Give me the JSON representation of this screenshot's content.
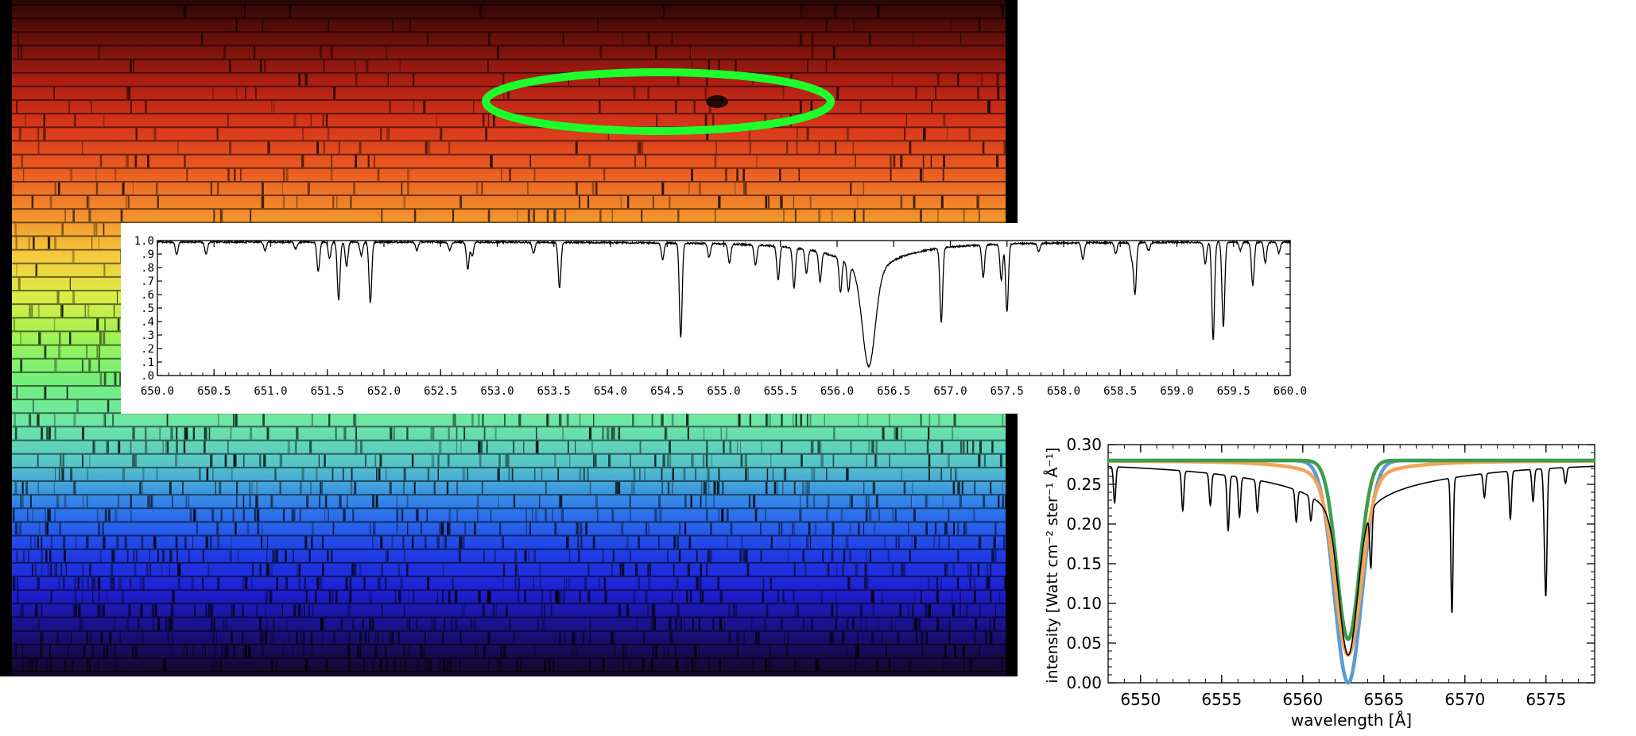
{
  "colors": {
    "spectrum_bands": [
      "#2a0605",
      "#6e110b",
      "#b01f12",
      "#d8381a",
      "#ea5a21",
      "#f28a2b",
      "#f6c83c",
      "#dcec47",
      "#9ef254",
      "#74ef7c",
      "#6de6a6",
      "#55c4c9",
      "#2f7bec",
      "#2040e6",
      "#1f1ed0",
      "#1a0f7a",
      "#150622"
    ],
    "circle": "#1cff2b",
    "observed": "#000000",
    "model_blue": "#5b9bd5",
    "model_orange": "#f5a358",
    "model_green": "#3e9d4b",
    "axis": "#000000"
  },
  "chart_data": [
    {
      "type": "line",
      "description_scope": "normalized solar spectrum around H-alpha",
      "xlim": [
        650.0,
        660.0
      ],
      "ylim": [
        0.0,
        1.0
      ],
      "x_ticks": [
        "650.0",
        "650.5",
        "651.0",
        "651.5",
        "652.0",
        "652.5",
        "653.0",
        "653.5",
        "654.0",
        "654.5",
        "655.0",
        "655.5",
        "656.0",
        "656.5",
        "657.0",
        "657.5",
        "658.0",
        "658.5",
        "659.0",
        "659.5",
        "660.0"
      ],
      "y_ticks": [
        ".0",
        ".1",
        ".2",
        ".3",
        ".4",
        ".5",
        ".6",
        ".7",
        ".8",
        ".9",
        "1.0"
      ],
      "continuum": 0.99,
      "broad_line": {
        "center": 656.28,
        "depth": 0.8,
        "core_width": 0.055,
        "wing_scale": 0.45
      },
      "lines": [
        [
          650.17,
          0.09
        ],
        [
          650.43,
          0.09
        ],
        [
          650.95,
          0.06
        ],
        [
          651.22,
          0.05
        ],
        [
          651.42,
          0.22
        ],
        [
          651.52,
          0.12
        ],
        [
          651.6,
          0.43
        ],
        [
          651.67,
          0.18
        ],
        [
          651.8,
          0.1
        ],
        [
          651.88,
          0.45
        ],
        [
          652.29,
          0.06
        ],
        [
          652.58,
          0.06
        ],
        [
          652.74,
          0.2
        ],
        [
          652.78,
          0.1
        ],
        [
          653.32,
          0.08
        ],
        [
          653.55,
          0.34
        ],
        [
          654.46,
          0.12
        ],
        [
          654.62,
          0.7
        ],
        [
          654.87,
          0.1
        ],
        [
          655.05,
          0.14
        ],
        [
          655.28,
          0.15
        ],
        [
          655.48,
          0.25
        ],
        [
          655.62,
          0.3
        ],
        [
          655.73,
          0.18
        ],
        [
          655.85,
          0.22
        ],
        [
          656.03,
          0.25
        ],
        [
          656.1,
          0.2
        ],
        [
          656.92,
          0.55
        ],
        [
          657.29,
          0.24
        ],
        [
          657.45,
          0.27
        ],
        [
          657.5,
          0.5
        ],
        [
          657.78,
          0.06
        ],
        [
          658.17,
          0.12
        ],
        [
          658.46,
          0.08
        ],
        [
          658.6,
          0.11
        ],
        [
          658.63,
          0.38
        ],
        [
          658.75,
          0.06
        ],
        [
          659.25,
          0.16
        ],
        [
          659.32,
          0.72
        ],
        [
          659.41,
          0.63
        ],
        [
          659.56,
          0.06
        ],
        [
          659.67,
          0.32
        ],
        [
          659.78,
          0.15
        ],
        [
          659.9,
          0.08
        ]
      ]
    },
    {
      "type": "line",
      "xlabel": "wavelength   [Å]",
      "ylabel": "intensity   [Watt cm⁻² ster⁻¹ Å⁻¹]",
      "xlim": [
        6548,
        6578
      ],
      "ylim": [
        0.0,
        0.3
      ],
      "x_ticks": [
        "6550",
        "6555",
        "6560",
        "6565",
        "6570",
        "6575"
      ],
      "y_ticks": [
        "0.00",
        "0.05",
        "0.10",
        "0.15",
        "0.20",
        "0.25",
        "0.30"
      ],
      "observed": {
        "continuum": 0.28,
        "broad_line": {
          "center": 6562.8,
          "depth": 0.215,
          "core_width": 0.55,
          "wing_scale": 4.5
        },
        "lines": [
          [
            6548.4,
            0.045
          ],
          [
            6552.6,
            0.05
          ],
          [
            6554.3,
            0.04
          ],
          [
            6555.4,
            0.07
          ],
          [
            6556.1,
            0.05
          ],
          [
            6557.2,
            0.04
          ],
          [
            6559.6,
            0.04
          ],
          [
            6560.5,
            0.03
          ],
          [
            6564.2,
            0.07
          ],
          [
            6569.2,
            0.17
          ],
          [
            6571.2,
            0.03
          ],
          [
            6572.8,
            0.06
          ],
          [
            6574.2,
            0.04
          ],
          [
            6574.9,
            0.05
          ],
          [
            6575.0,
            0.14
          ],
          [
            6576.2,
            0.02
          ]
        ]
      },
      "series": [
        {
          "color_key": "model_blue",
          "continuum": 0.28,
          "center": 6562.8,
          "depth": 0.28,
          "width": 0.85,
          "wings": 0.0
        },
        {
          "color_key": "model_orange",
          "continuum": 0.28,
          "center": 6562.8,
          "depth": 0.245,
          "width": 0.8,
          "wings": 0.03
        },
        {
          "color_key": "model_green",
          "continuum": 0.28,
          "center": 6562.8,
          "depth": 0.225,
          "width": 0.7,
          "wings": 0.0
        }
      ]
    }
  ]
}
